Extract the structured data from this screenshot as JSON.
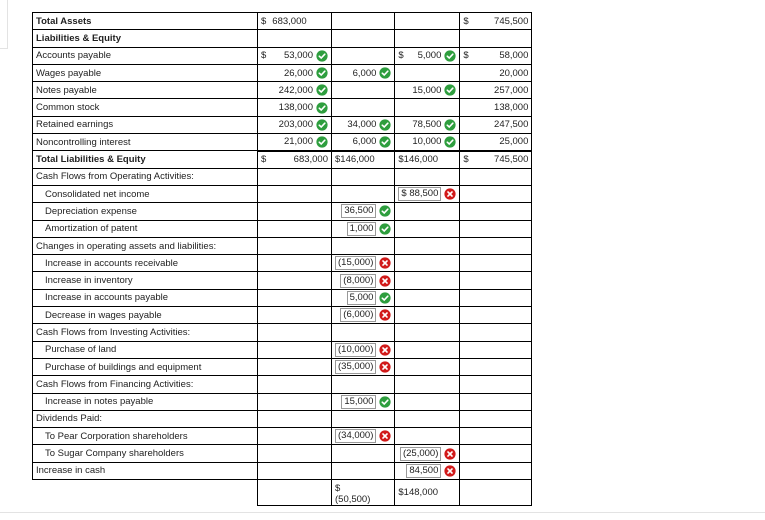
{
  "rows": [
    {
      "label": "Total Assets",
      "style": "bold",
      "cells": [
        {
          "dollar": "$",
          "value": "683,000",
          "align": "left"
        },
        {},
        {},
        {
          "dollar": "$",
          "value": "745,500"
        }
      ]
    },
    {
      "label": "Liabilities & Equity",
      "style": "bold",
      "cells": [
        {},
        {},
        {},
        {}
      ]
    },
    {
      "label": "Accounts payable",
      "style": "",
      "cells": [
        {
          "dollar": "$",
          "value": "53,000",
          "mark": "check"
        },
        {},
        {
          "dollar": "$",
          "value": "5,000",
          "mark": "check"
        },
        {
          "dollar": "$",
          "value": "58,000"
        }
      ]
    },
    {
      "label": "Wages payable",
      "style": "",
      "cells": [
        {
          "value": "26,000",
          "mark": "check"
        },
        {
          "value": "6,000",
          "mark": "check"
        },
        {},
        {
          "value": "20,000"
        }
      ]
    },
    {
      "label": "Notes payable",
      "style": "",
      "cells": [
        {
          "value": "242,000",
          "mark": "check"
        },
        {},
        {
          "value": "15,000",
          "mark": "check"
        },
        {
          "value": "257,000"
        }
      ]
    },
    {
      "label": "Common stock",
      "style": "",
      "cells": [
        {
          "value": "138,000",
          "mark": "check"
        },
        {},
        {},
        {
          "value": "138,000"
        }
      ]
    },
    {
      "label": "Retained earnings",
      "style": "",
      "cells": [
        {
          "value": "203,000",
          "mark": "check"
        },
        {
          "value": "34,000",
          "mark": "check"
        },
        {
          "value": "78,500",
          "mark": "check"
        },
        {
          "value": "247,500"
        }
      ]
    },
    {
      "label": "Noncontrolling interest",
      "style": "",
      "cells": [
        {
          "value": "21,000",
          "mark": "check"
        },
        {
          "value": "6,000",
          "mark": "check"
        },
        {
          "value": "10,000",
          "mark": "check"
        },
        {
          "value": "25,000"
        }
      ]
    },
    {
      "label": "Total Liabilities & Equity",
      "style": "bold",
      "cells": [
        {
          "dollar": "$",
          "value": "683,000"
        },
        {
          "value": "$146,000",
          "align": "left"
        },
        {
          "value": "$146,000",
          "align": "left"
        },
        {
          "dollar": "$",
          "value": "745,500"
        }
      ]
    },
    {
      "label": "Cash Flows from Operating Activities:",
      "style": "",
      "cells": [
        {},
        {},
        {},
        {}
      ]
    },
    {
      "label": "Consolidated net income",
      "style": "indent",
      "cells": [
        {},
        {},
        {
          "value": "$ 88,500",
          "mark": "cross",
          "boxed": true
        },
        {}
      ]
    },
    {
      "label": "Depreciation expense",
      "style": "indent",
      "cells": [
        {},
        {
          "value": "36,500",
          "mark": "check",
          "boxed": true
        },
        {},
        {}
      ]
    },
    {
      "label": "Amortization of patent",
      "style": "indent",
      "cells": [
        {},
        {
          "value": "1,000",
          "mark": "check",
          "boxed": true
        },
        {},
        {}
      ]
    },
    {
      "label": "Changes in operating assets and liabilities:",
      "style": "",
      "cells": [
        {},
        {},
        {},
        {}
      ]
    },
    {
      "label": "Increase in accounts receivable",
      "style": "indent",
      "cells": [
        {},
        {
          "value": "(15,000)",
          "mark": "cross",
          "boxed": true
        },
        {},
        {}
      ]
    },
    {
      "label": "Increase in inventory",
      "style": "indent",
      "cells": [
        {},
        {
          "value": "(8,000)",
          "mark": "cross",
          "boxed": true
        },
        {},
        {}
      ]
    },
    {
      "label": "Increase in accounts payable",
      "style": "indent",
      "cells": [
        {},
        {
          "value": "5,000",
          "mark": "check",
          "boxed": true
        },
        {},
        {}
      ]
    },
    {
      "label": "Decrease in wages payable",
      "style": "indent",
      "cells": [
        {},
        {
          "value": "(6,000)",
          "mark": "cross",
          "boxed": true
        },
        {},
        {}
      ]
    },
    {
      "label": "Cash Flows from Investing Activities:",
      "style": "",
      "cells": [
        {},
        {},
        {},
        {}
      ]
    },
    {
      "label": "Purchase of land",
      "style": "indent",
      "cells": [
        {},
        {
          "value": "(10,000)",
          "mark": "cross",
          "boxed": true
        },
        {},
        {}
      ]
    },
    {
      "label": "Purchase of buildings and equipment",
      "style": "indent",
      "cells": [
        {},
        {
          "value": "(35,000)",
          "mark": "cross",
          "boxed": true
        },
        {},
        {}
      ]
    },
    {
      "label": "Cash Flows from Financing Activities:",
      "style": "",
      "cells": [
        {},
        {},
        {},
        {}
      ]
    },
    {
      "label": "Increase in notes payable",
      "style": "indent",
      "cells": [
        {},
        {
          "value": "15,000",
          "mark": "check",
          "boxed": true
        },
        {},
        {}
      ]
    },
    {
      "label": "Dividends Paid:",
      "style": "",
      "cells": [
        {},
        {},
        {},
        {}
      ]
    },
    {
      "label": "To Pear Corporation shareholders",
      "style": "indent",
      "cells": [
        {},
        {
          "value": "(34,000)",
          "mark": "cross",
          "boxed": true
        },
        {},
        {}
      ]
    },
    {
      "label": "To Sugar Company shareholders",
      "style": "indent",
      "cells": [
        {},
        {},
        {
          "value": "(25,000)",
          "mark": "cross",
          "boxed": true
        },
        {}
      ]
    },
    {
      "label": "Increase in cash",
      "style": "",
      "cells": [
        {},
        {},
        {
          "value": "84,500",
          "mark": "cross",
          "boxed": true
        },
        {}
      ]
    },
    {
      "label": "",
      "style": "",
      "cells": [
        {},
        {
          "stack": [
            "$",
            "(50,500)"
          ]
        },
        {
          "value": "$148,000",
          "align": "left"
        },
        {}
      ]
    }
  ],
  "colors": {
    "check": "#2e9e3e",
    "cross": "#d11a1a"
  },
  "icons": {
    "check": "check-circle-icon",
    "cross": "x-circle-icon"
  }
}
